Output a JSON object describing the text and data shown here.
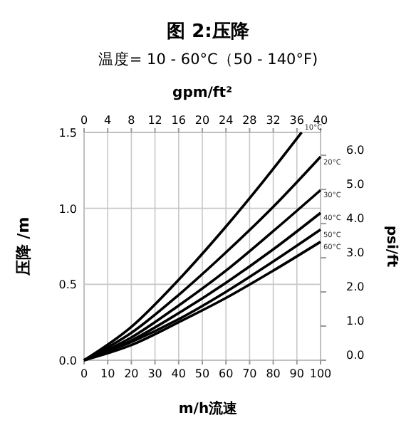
{
  "chart_data": {
    "type": "line",
    "title": "图 2:压降",
    "subtitle": "温度= 10 - 60°C（50 - 140°F)",
    "xlabel": "m/h流速",
    "ylabel": "压降 /m",
    "y2label": "psi/ft",
    "x2label": "gpm/ft²",
    "x": [
      0,
      20,
      40,
      60,
      80,
      100
    ],
    "series": [
      {
        "name": "10°C",
        "color": "#000000",
        "x": [
          0,
          20,
          40,
          60,
          80,
          92
        ],
        "values": [
          0,
          0.22,
          0.53,
          0.88,
          1.26,
          1.5
        ]
      },
      {
        "name": "20°C",
        "color": "#000000",
        "values": [
          0,
          0.18,
          0.43,
          0.71,
          1.01,
          1.34
        ]
      },
      {
        "name": "30°C",
        "color": "#000000",
        "values": [
          0,
          0.15,
          0.36,
          0.59,
          0.85,
          1.12
        ]
      },
      {
        "name": "40°C",
        "color": "#000000",
        "values": [
          0,
          0.13,
          0.31,
          0.51,
          0.73,
          0.97
        ]
      },
      {
        "name": "50°C",
        "color": "#000000",
        "values": [
          0,
          0.12,
          0.27,
          0.45,
          0.65,
          0.86
        ]
      },
      {
        "name": "60°C",
        "color": "#000000",
        "values": [
          0,
          0.1,
          0.25,
          0.41,
          0.59,
          0.78
        ]
      }
    ],
    "xlim": [
      0,
      100
    ],
    "xticks": [
      0,
      10,
      20,
      30,
      40,
      50,
      60,
      70,
      80,
      90,
      100
    ],
    "ylim": [
      0,
      1.5
    ],
    "yticks": [
      {
        "value": 0,
        "label": "0.0"
      },
      0.5,
      {
        "value": 1,
        "label": "1.0"
      },
      1.5
    ],
    "x2lim": [
      0,
      40
    ],
    "x2ticks": [
      0,
      4,
      8,
      12,
      16,
      20,
      24,
      28,
      32,
      36,
      40
    ],
    "y2lim": [
      0,
      6.67
    ],
    "y2ticks": [
      {
        "value": 0,
        "label": "0.0"
      },
      {
        "value": 1,
        "label": "1.0"
      },
      {
        "value": 2,
        "label": "2.0"
      },
      {
        "value": 3,
        "label": "3.0"
      },
      {
        "value": 4,
        "label": "4.0"
      },
      {
        "value": 5,
        "label": "5.0"
      },
      {
        "value": 6,
        "label": "6.0"
      }
    ],
    "grid": true,
    "marker": "none",
    "line_style": "solid"
  }
}
